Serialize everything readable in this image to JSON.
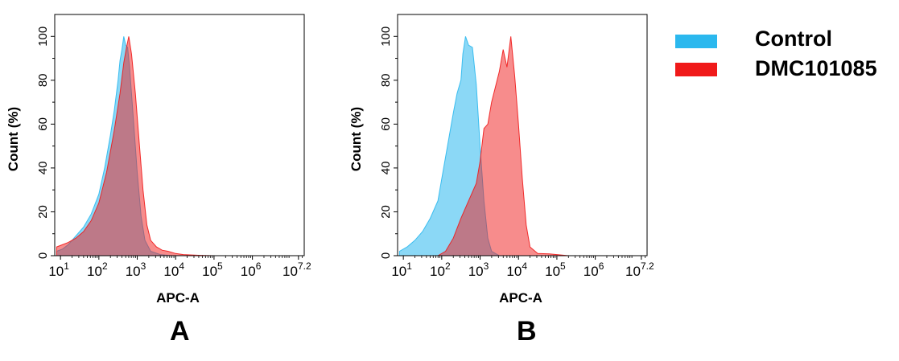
{
  "chart_data": [
    {
      "type": "area",
      "panel_label": "A",
      "xlabel": "APC-A",
      "ylabel": "Count (%)",
      "x_scale": "log10",
      "xlim_exp": [
        0.85,
        7.35
      ],
      "x_ticks": [
        {
          "base": "10",
          "exp": "1",
          "value_exp": 1
        },
        {
          "base": "10",
          "exp": "2",
          "value_exp": 2
        },
        {
          "base": "10",
          "exp": "3",
          "value_exp": 3
        },
        {
          "base": "10",
          "exp": "4",
          "value_exp": 4
        },
        {
          "base": "10",
          "exp": "5",
          "value_exp": 5
        },
        {
          "base": "10",
          "exp": "6",
          "value_exp": 6
        },
        {
          "base": "10",
          "exp": "7.2",
          "value_exp": 7.2
        }
      ],
      "ylim": [
        0,
        110
      ],
      "y_ticks": [
        0,
        20,
        40,
        60,
        80,
        100
      ],
      "grid": false,
      "series": [
        {
          "name": "Control",
          "color": "#2bb8ee",
          "points": [
            [
              0.9,
              2
            ],
            [
              1.05,
              3
            ],
            [
              1.2,
              5
            ],
            [
              1.4,
              9
            ],
            [
              1.6,
              13
            ],
            [
              1.8,
              19
            ],
            [
              2.0,
              28
            ],
            [
              2.15,
              40
            ],
            [
              2.3,
              55
            ],
            [
              2.4,
              66
            ],
            [
              2.5,
              80
            ],
            [
              2.55,
              89
            ],
            [
              2.6,
              94
            ],
            [
              2.65,
              100
            ],
            [
              2.7,
              96
            ],
            [
              2.75,
              95
            ],
            [
              2.8,
              86
            ],
            [
              2.9,
              62
            ],
            [
              3.0,
              38
            ],
            [
              3.1,
              18
            ],
            [
              3.2,
              7
            ],
            [
              3.35,
              2
            ],
            [
              3.6,
              0.5
            ],
            [
              3.9,
              0
            ]
          ]
        },
        {
          "name": "DMC101085",
          "color": "#f01a1a",
          "points": [
            [
              0.9,
              4
            ],
            [
              1.05,
              5
            ],
            [
              1.2,
              6
            ],
            [
              1.4,
              8
            ],
            [
              1.6,
              11
            ],
            [
              1.8,
              16
            ],
            [
              2.0,
              24
            ],
            [
              2.2,
              38
            ],
            [
              2.4,
              57
            ],
            [
              2.55,
              74
            ],
            [
              2.65,
              88
            ],
            [
              2.72,
              95
            ],
            [
              2.78,
              100
            ],
            [
              2.85,
              92
            ],
            [
              2.95,
              74
            ],
            [
              3.05,
              52
            ],
            [
              3.15,
              30
            ],
            [
              3.25,
              14
            ],
            [
              3.35,
              7
            ],
            [
              3.5,
              4
            ],
            [
              3.65,
              2.5
            ],
            [
              3.8,
              2
            ],
            [
              4.0,
              1
            ],
            [
              4.2,
              0.5
            ],
            [
              4.6,
              0.2
            ],
            [
              5.0,
              0
            ]
          ]
        }
      ]
    },
    {
      "type": "area",
      "panel_label": "B",
      "xlabel": "APC-A",
      "ylabel": "Count (%)",
      "x_scale": "log10",
      "xlim_exp": [
        0.85,
        7.35
      ],
      "x_ticks": [
        {
          "base": "10",
          "exp": "1",
          "value_exp": 1
        },
        {
          "base": "10",
          "exp": "2",
          "value_exp": 2
        },
        {
          "base": "10",
          "exp": "3",
          "value_exp": 3
        },
        {
          "base": "10",
          "exp": "4",
          "value_exp": 4
        },
        {
          "base": "10",
          "exp": "5",
          "value_exp": 5
        },
        {
          "base": "10",
          "exp": "6",
          "value_exp": 6
        },
        {
          "base": "10",
          "exp": "7.2",
          "value_exp": 7.2
        }
      ],
      "ylim": [
        0,
        110
      ],
      "y_ticks": [
        0,
        20,
        40,
        60,
        80,
        100
      ],
      "grid": false,
      "series": [
        {
          "name": "Control",
          "color": "#2bb8ee",
          "points": [
            [
              0.9,
              2
            ],
            [
              1.1,
              4
            ],
            [
              1.3,
              7
            ],
            [
              1.5,
              11
            ],
            [
              1.7,
              17
            ],
            [
              1.9,
              25
            ],
            [
              2.05,
              40
            ],
            [
              2.2,
              55
            ],
            [
              2.3,
              65
            ],
            [
              2.4,
              74
            ],
            [
              2.5,
              80
            ],
            [
              2.55,
              92
            ],
            [
              2.62,
              100
            ],
            [
              2.7,
              96
            ],
            [
              2.8,
              95
            ],
            [
              2.9,
              78
            ],
            [
              3.0,
              50
            ],
            [
              3.1,
              25
            ],
            [
              3.2,
              8
            ],
            [
              3.3,
              2
            ],
            [
              3.5,
              0
            ]
          ]
        },
        {
          "name": "DMC101085",
          "color": "#f01a1a",
          "points": [
            [
              1.9,
              0
            ],
            [
              2.1,
              2
            ],
            [
              2.3,
              8
            ],
            [
              2.5,
              17
            ],
            [
              2.7,
              25
            ],
            [
              2.9,
              33
            ],
            [
              3.0,
              43
            ],
            [
              3.1,
              58
            ],
            [
              3.2,
              60
            ],
            [
              3.3,
              70
            ],
            [
              3.4,
              77
            ],
            [
              3.5,
              84
            ],
            [
              3.6,
              94
            ],
            [
              3.7,
              86
            ],
            [
              3.8,
              100
            ],
            [
              3.9,
              82
            ],
            [
              4.0,
              60
            ],
            [
              4.1,
              35
            ],
            [
              4.2,
              14
            ],
            [
              4.3,
              4
            ],
            [
              4.5,
              1
            ],
            [
              4.8,
              0.8
            ],
            [
              5.0,
              0.5
            ],
            [
              5.3,
              0
            ]
          ]
        }
      ]
    }
  ],
  "legend": [
    {
      "label": "Control",
      "color": "#2bb8ee"
    },
    {
      "label": "DMC101085",
      "color": "#f01a1a"
    }
  ]
}
